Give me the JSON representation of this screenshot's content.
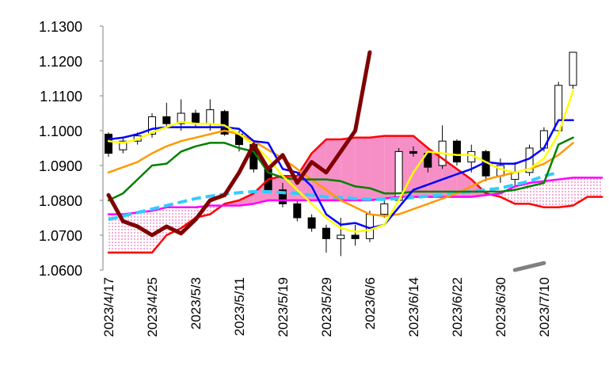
{
  "chart_data": {
    "type": "candlestick",
    "categories": [
      "2023/4/17",
      null,
      null,
      "2023/4/25",
      null,
      null,
      "2023/5/3",
      null,
      null,
      "2023/5/11",
      null,
      null,
      "2023/5/19",
      null,
      null,
      "2023/5/29",
      null,
      null,
      "2023/6/6",
      null,
      null,
      "2023/6/14",
      null,
      null,
      "2023/6/22",
      null,
      null,
      "2023/6/30",
      null,
      null,
      "2023/7/10",
      null,
      null,
      null,
      null
    ],
    "ylim": [
      1.06,
      1.13
    ],
    "yticks": [
      {
        "value": 1.06,
        "label": "1.0600"
      },
      {
        "value": 1.07,
        "label": "1.0700"
      },
      {
        "value": 1.08,
        "label": "1.0800"
      },
      {
        "value": 1.09,
        "label": "1.0900"
      },
      {
        "value": 1.1,
        "label": "1.1000"
      },
      {
        "value": 1.11,
        "label": "1.1100"
      },
      {
        "value": 1.12,
        "label": "1.1200"
      },
      {
        "value": 1.13,
        "label": "1.1300"
      }
    ],
    "cloud_fill": "#f78fc7",
    "ohlc": {
      "open": [
        1.099,
        1.0945,
        1.097,
        1.099,
        1.104,
        1.102,
        1.105,
        1.102,
        1.1055,
        1.099,
        1.096,
        1.089,
        1.083,
        1.079,
        1.075,
        1.072,
        1.069,
        1.07,
        1.069,
        1.076,
        1.08,
        1.094,
        1.0935,
        1.09,
        1.097,
        1.091,
        1.094,
        1.087,
        1.086,
        1.088,
        1.095,
        1.1,
        1.113
      ],
      "high": [
        1.0995,
        1.098,
        1.0995,
        1.105,
        1.108,
        1.109,
        1.106,
        1.109,
        1.106,
        1.1,
        1.097,
        1.09,
        1.085,
        1.08,
        1.076,
        1.073,
        1.075,
        1.073,
        1.077,
        1.08,
        1.095,
        1.0955,
        1.0945,
        1.1015,
        1.0975,
        1.096,
        1.0945,
        1.092,
        1.091,
        1.096,
        1.101,
        1.114,
        1.1225
      ],
      "low": [
        1.0925,
        1.0935,
        1.096,
        1.098,
        1.101,
        1.1,
        1.101,
        1.1,
        1.0985,
        1.094,
        1.088,
        1.082,
        1.078,
        1.074,
        1.071,
        1.065,
        1.064,
        1.067,
        1.068,
        1.075,
        1.08,
        1.0925,
        1.088,
        1.089,
        1.09,
        1.088,
        1.0855,
        1.085,
        1.084,
        1.087,
        1.094,
        1.099,
        1.112
      ],
      "close": [
        1.0935,
        1.097,
        1.0985,
        1.104,
        1.102,
        1.105,
        1.102,
        1.106,
        1.099,
        1.096,
        1.089,
        1.083,
        1.079,
        1.075,
        1.072,
        1.069,
        1.07,
        1.069,
        1.076,
        1.079,
        1.094,
        1.0935,
        1.0895,
        1.097,
        1.091,
        1.094,
        1.087,
        1.09,
        1.088,
        1.095,
        1.1,
        1.113,
        1.1225
      ],
      "up_color": "#ffffff",
      "down_color": "#000000"
    },
    "series": [
      {
        "color": "#ff0000",
        "cloud": "b",
        "values": [
          1.065,
          1.065,
          1.065,
          1.065,
          1.07,
          1.072,
          1.075,
          1.076,
          1.079,
          1.08,
          1.082,
          1.086,
          1.087,
          1.087,
          1.0935,
          1.0975,
          1.0975,
          1.098,
          1.098,
          1.0985,
          1.0985,
          1.0985,
          1.095,
          1.092,
          1.089,
          1.086,
          1.082,
          1.081,
          1.079,
          1.079,
          1.078,
          1.078,
          1.0785,
          1.081,
          1.081
        ]
      },
      {
        "color": "#ff00ff",
        "cloud": "a",
        "values": [
          1.076,
          1.076,
          1.0765,
          1.077,
          1.078,
          1.078,
          1.078,
          1.0785,
          1.0785,
          1.0785,
          1.079,
          1.08,
          1.08,
          1.08,
          1.08,
          1.08,
          1.08,
          1.08,
          1.08,
          1.0805,
          1.081,
          1.081,
          1.081,
          1.081,
          1.081,
          1.081,
          1.0815,
          1.082,
          1.084,
          1.085,
          1.0855,
          1.086,
          1.0865,
          1.0865,
          1.0865
        ]
      },
      {
        "color": "#33ccff",
        "style": "dashed",
        "values": [
          1.0745,
          1.0755,
          1.0765,
          1.0775,
          1.0785,
          1.0795,
          1.0805,
          1.0812,
          1.0818,
          1.0822,
          1.0825,
          1.0825,
          1.0822,
          1.082,
          1.0815,
          1.081,
          1.0808,
          1.0805,
          1.0803,
          1.0803,
          1.0805,
          1.0808,
          1.0812,
          1.0815,
          1.082,
          1.0825,
          1.083,
          1.0835,
          1.0845,
          1.0855,
          1.087,
          1.088,
          null,
          null,
          null
        ]
      },
      {
        "color": "#ff9900",
        "values": [
          1.088,
          1.0895,
          1.091,
          1.0935,
          1.0955,
          1.097,
          1.098,
          1.099,
          1.1,
          1.099,
          1.097,
          1.0945,
          1.092,
          1.089,
          1.086,
          1.083,
          1.08,
          1.078,
          1.076,
          1.0755,
          1.076,
          1.0775,
          1.079,
          1.0805,
          1.082,
          1.084,
          1.086,
          1.087,
          1.088,
          1.089,
          1.0905,
          1.093,
          1.0965,
          null,
          null
        ]
      },
      {
        "color": "#008000",
        "values": [
          1.08,
          1.082,
          1.086,
          1.09,
          1.0905,
          1.094,
          1.0955,
          1.0965,
          1.0965,
          1.095,
          1.094,
          1.088,
          1.0865,
          1.086,
          1.086,
          1.086,
          1.0855,
          1.084,
          1.0835,
          1.082,
          1.082,
          1.0825,
          1.0825,
          1.0825,
          1.0825,
          1.0825,
          1.0825,
          1.0825,
          1.083,
          1.084,
          1.085,
          1.096,
          1.098,
          null,
          null
        ]
      },
      {
        "color": "#0000ff",
        "values": [
          1.0975,
          1.098,
          1.099,
          1.1005,
          1.101,
          1.101,
          1.101,
          1.101,
          1.101,
          1.1005,
          1.097,
          1.0965,
          1.089,
          1.088,
          1.084,
          1.076,
          1.073,
          1.0735,
          1.072,
          1.073,
          1.078,
          1.083,
          1.0845,
          1.086,
          1.0875,
          1.089,
          1.091,
          1.0905,
          1.0905,
          1.092,
          1.095,
          1.103,
          1.103,
          null,
          null
        ]
      },
      {
        "color": "#ffff00",
        "values": [
          1.097,
          1.0965,
          1.0975,
          1.0995,
          1.101,
          1.1025,
          1.102,
          1.102,
          1.1015,
          1.099,
          1.096,
          1.092,
          1.087,
          1.083,
          1.079,
          1.075,
          1.072,
          1.071,
          1.0715,
          1.073,
          1.08,
          1.088,
          1.094,
          1.0935,
          1.093,
          1.093,
          1.091,
          1.089,
          1.088,
          1.089,
          1.092,
          1.099,
          1.1115,
          null,
          null
        ]
      },
      {
        "color": "#800000",
        "style": "thick",
        "values": [
          1.0815,
          1.074,
          1.0725,
          1.07,
          1.0725,
          1.0705,
          1.0745,
          1.08,
          1.0815,
          1.088,
          1.096,
          1.089,
          1.093,
          1.085,
          1.091,
          1.088,
          1.094,
          1.1,
          1.1225,
          null,
          null,
          null,
          null,
          null,
          null,
          null,
          null,
          null,
          null,
          null,
          null,
          null,
          null,
          null,
          null
        ]
      },
      {
        "color": "#808080",
        "style": "thick",
        "values": [
          null,
          null,
          null,
          null,
          null,
          null,
          null,
          null,
          null,
          null,
          null,
          null,
          null,
          null,
          null,
          null,
          null,
          null,
          null,
          null,
          null,
          null,
          null,
          null,
          null,
          null,
          null,
          null,
          1.06,
          1.061,
          1.062,
          null,
          null,
          null,
          null
        ]
      }
    ]
  }
}
